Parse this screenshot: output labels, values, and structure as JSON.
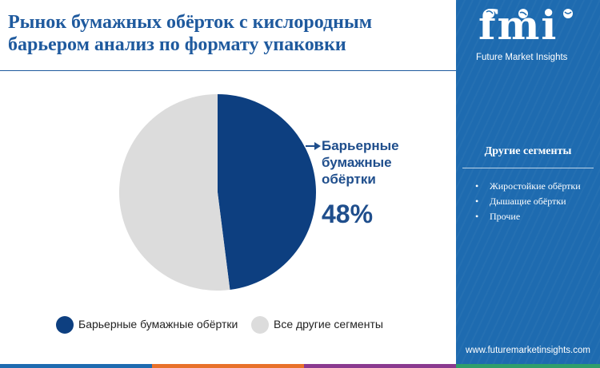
{
  "title": "Рынок бумажных обёрток с кислородным барьером анализ по формату упаковки",
  "chart_data": {
    "type": "pie",
    "slices": [
      {
        "label": "Барьерные бумажные обёртки",
        "value": 48,
        "color": "#0d3f80"
      },
      {
        "label": "Все другие сегменты",
        "value": 52,
        "color": "#dcdcdc"
      }
    ],
    "start_angle_deg": 0,
    "direction": "clockwise",
    "legend_position": "bottom"
  },
  "callout": {
    "label": "Барьерные бумажные обёртки",
    "value": "48%"
  },
  "legend": {
    "items": [
      {
        "label": "Барьерные бумажные обёртки",
        "color": "#0d3f80"
      },
      {
        "label": "Все другие сегменты",
        "color": "#dcdcdc"
      }
    ]
  },
  "sidebar": {
    "logo": "fmi",
    "brand": "Future Market Insights",
    "segments_title": "Другие сегменты",
    "segments": [
      "Жиростойкие обёртки",
      "Дышащие обёртки",
      "Прочие"
    ],
    "website": "www.futuremarketinsights.com",
    "background_color": "#1e6bb0"
  },
  "bottom_bar_colors": [
    "#1e6bb0",
    "#e8712a",
    "#8a3a8f",
    "#2f9e6b"
  ]
}
